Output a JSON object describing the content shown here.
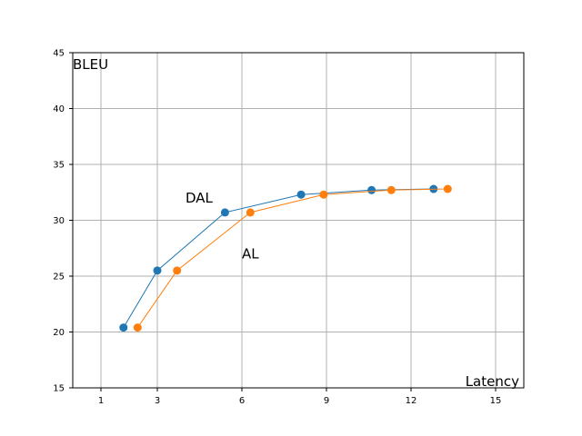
{
  "chart_data": {
    "type": "line",
    "xlabel": "Latency",
    "ylabel": "BLEU",
    "xlim": [
      0,
      16
    ],
    "ylim": [
      15,
      45
    ],
    "xticks": [
      1,
      3,
      6,
      9,
      12,
      15
    ],
    "yticks": [
      15,
      20,
      25,
      30,
      35,
      40,
      45
    ],
    "grid": true,
    "series": [
      {
        "name": "DAL",
        "color": "#1f77b4",
        "x": [
          1.8,
          3.0,
          5.4,
          8.1,
          10.6,
          12.8
        ],
        "y": [
          20.4,
          25.5,
          30.7,
          32.3,
          32.7,
          32.8
        ]
      },
      {
        "name": "AL",
        "color": "#ff7f0e",
        "x": [
          2.3,
          3.7,
          6.3,
          8.9,
          11.3,
          13.3
        ],
        "y": [
          20.4,
          25.5,
          30.7,
          32.3,
          32.7,
          32.8
        ]
      }
    ],
    "annotations": [
      {
        "text": "DAL",
        "x": 4.0,
        "y": 31.6
      },
      {
        "text": "AL",
        "x": 6.0,
        "y": 26.6
      }
    ]
  }
}
